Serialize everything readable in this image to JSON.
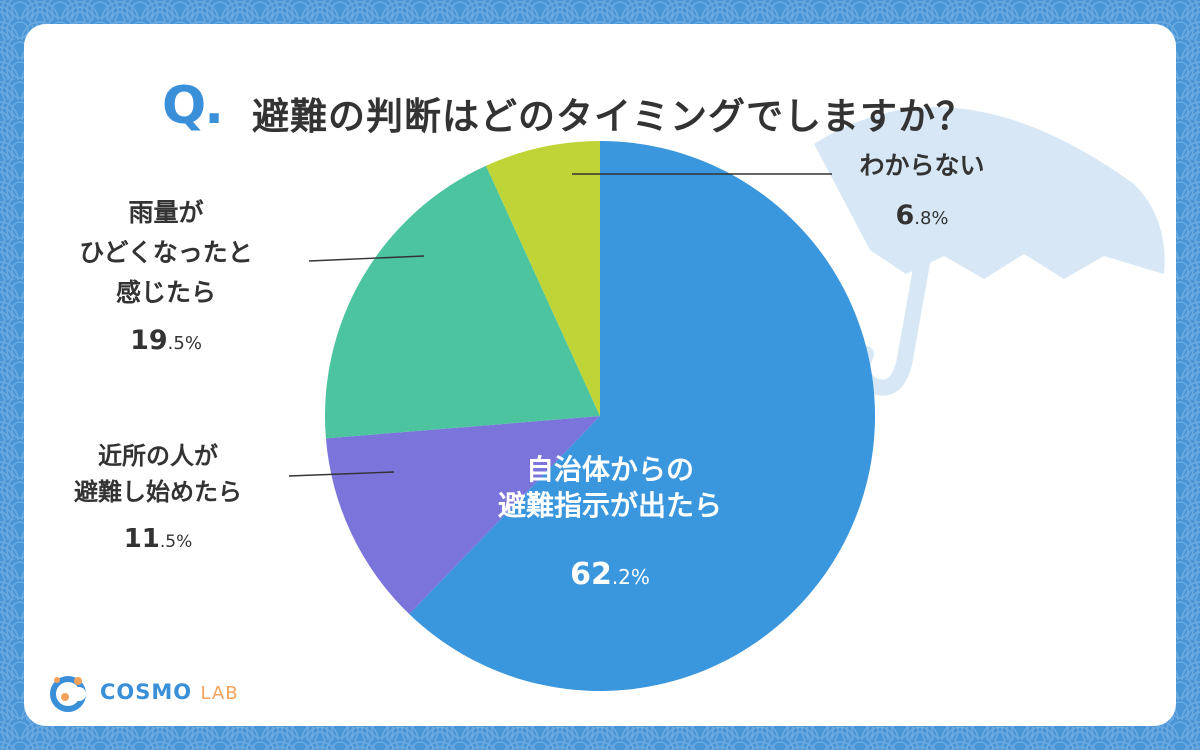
{
  "title": {
    "mark": "Q.",
    "text": "避難の判断はどのタイミングでしますか？"
  },
  "logo": {
    "part1": "COSMO",
    "part2": "LAB"
  },
  "colors": {
    "background": "#4a95d6",
    "accent": "#3a8fd9",
    "logo_lab": "#f2a25a"
  },
  "chart_data": {
    "type": "pie",
    "start_angle": "12 o'clock",
    "direction": "clockwise",
    "slices": [
      {
        "label_lines": [
          "自治体からの",
          "避難指示が出たら"
        ],
        "value": 62.2,
        "value_int": "62",
        "value_dec": ".2%",
        "color": "#3a96dd"
      },
      {
        "label_lines": [
          "近所の人が",
          "避難し始めたら"
        ],
        "value": 11.5,
        "value_int": "11",
        "value_dec": ".5%",
        "color": "#7b74db"
      },
      {
        "label_lines": [
          "雨量が",
          "ひどくなったと",
          "感じたら"
        ],
        "value": 19.5,
        "value_int": "19",
        "value_dec": ".5%",
        "color": "#4cc49f"
      },
      {
        "label_lines": [
          "わからない"
        ],
        "value": 6.8,
        "value_int": "6",
        "value_dec": ".8%",
        "color": "#bfd437"
      }
    ]
  }
}
